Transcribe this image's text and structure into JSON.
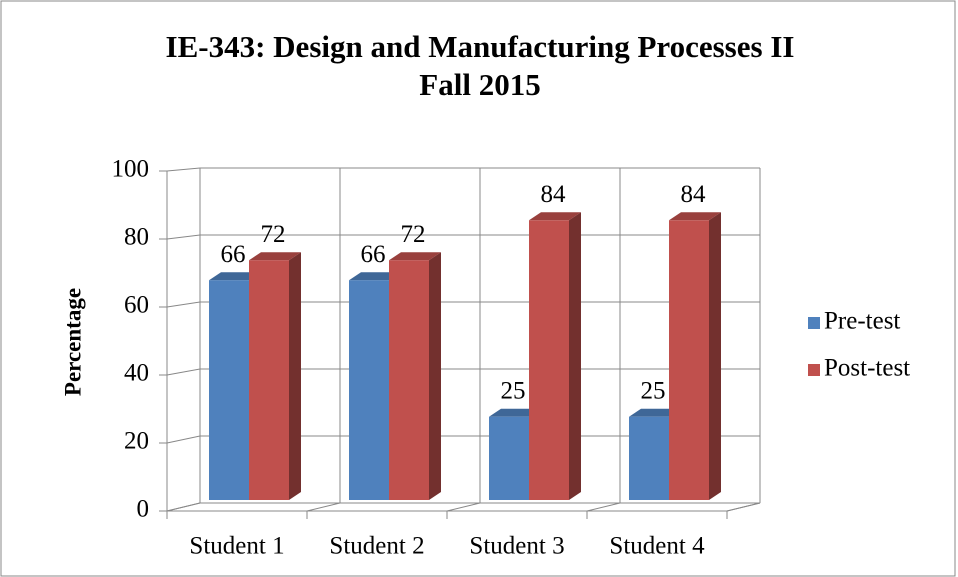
{
  "chart_data": {
    "type": "bar3d",
    "title": "IE-343: Design and Manufacturing Processes II",
    "subtitle": "Fall 2015",
    "y_label": "Percentage",
    "categories": [
      "Student 1",
      "Student 2",
      "Student 3",
      "Student 4"
    ],
    "series": [
      {
        "name": "Pre-test",
        "color": "#4f81bd",
        "values": [
          66,
          66,
          25,
          25
        ]
      },
      {
        "name": "Post-test",
        "color": "#c0504d",
        "values": [
          72,
          72,
          84,
          84
        ]
      }
    ],
    "ylim": [
      0,
      100
    ],
    "yticks": [
      0,
      20,
      40,
      60,
      80,
      100
    ],
    "grid": true,
    "legend": "right"
  }
}
